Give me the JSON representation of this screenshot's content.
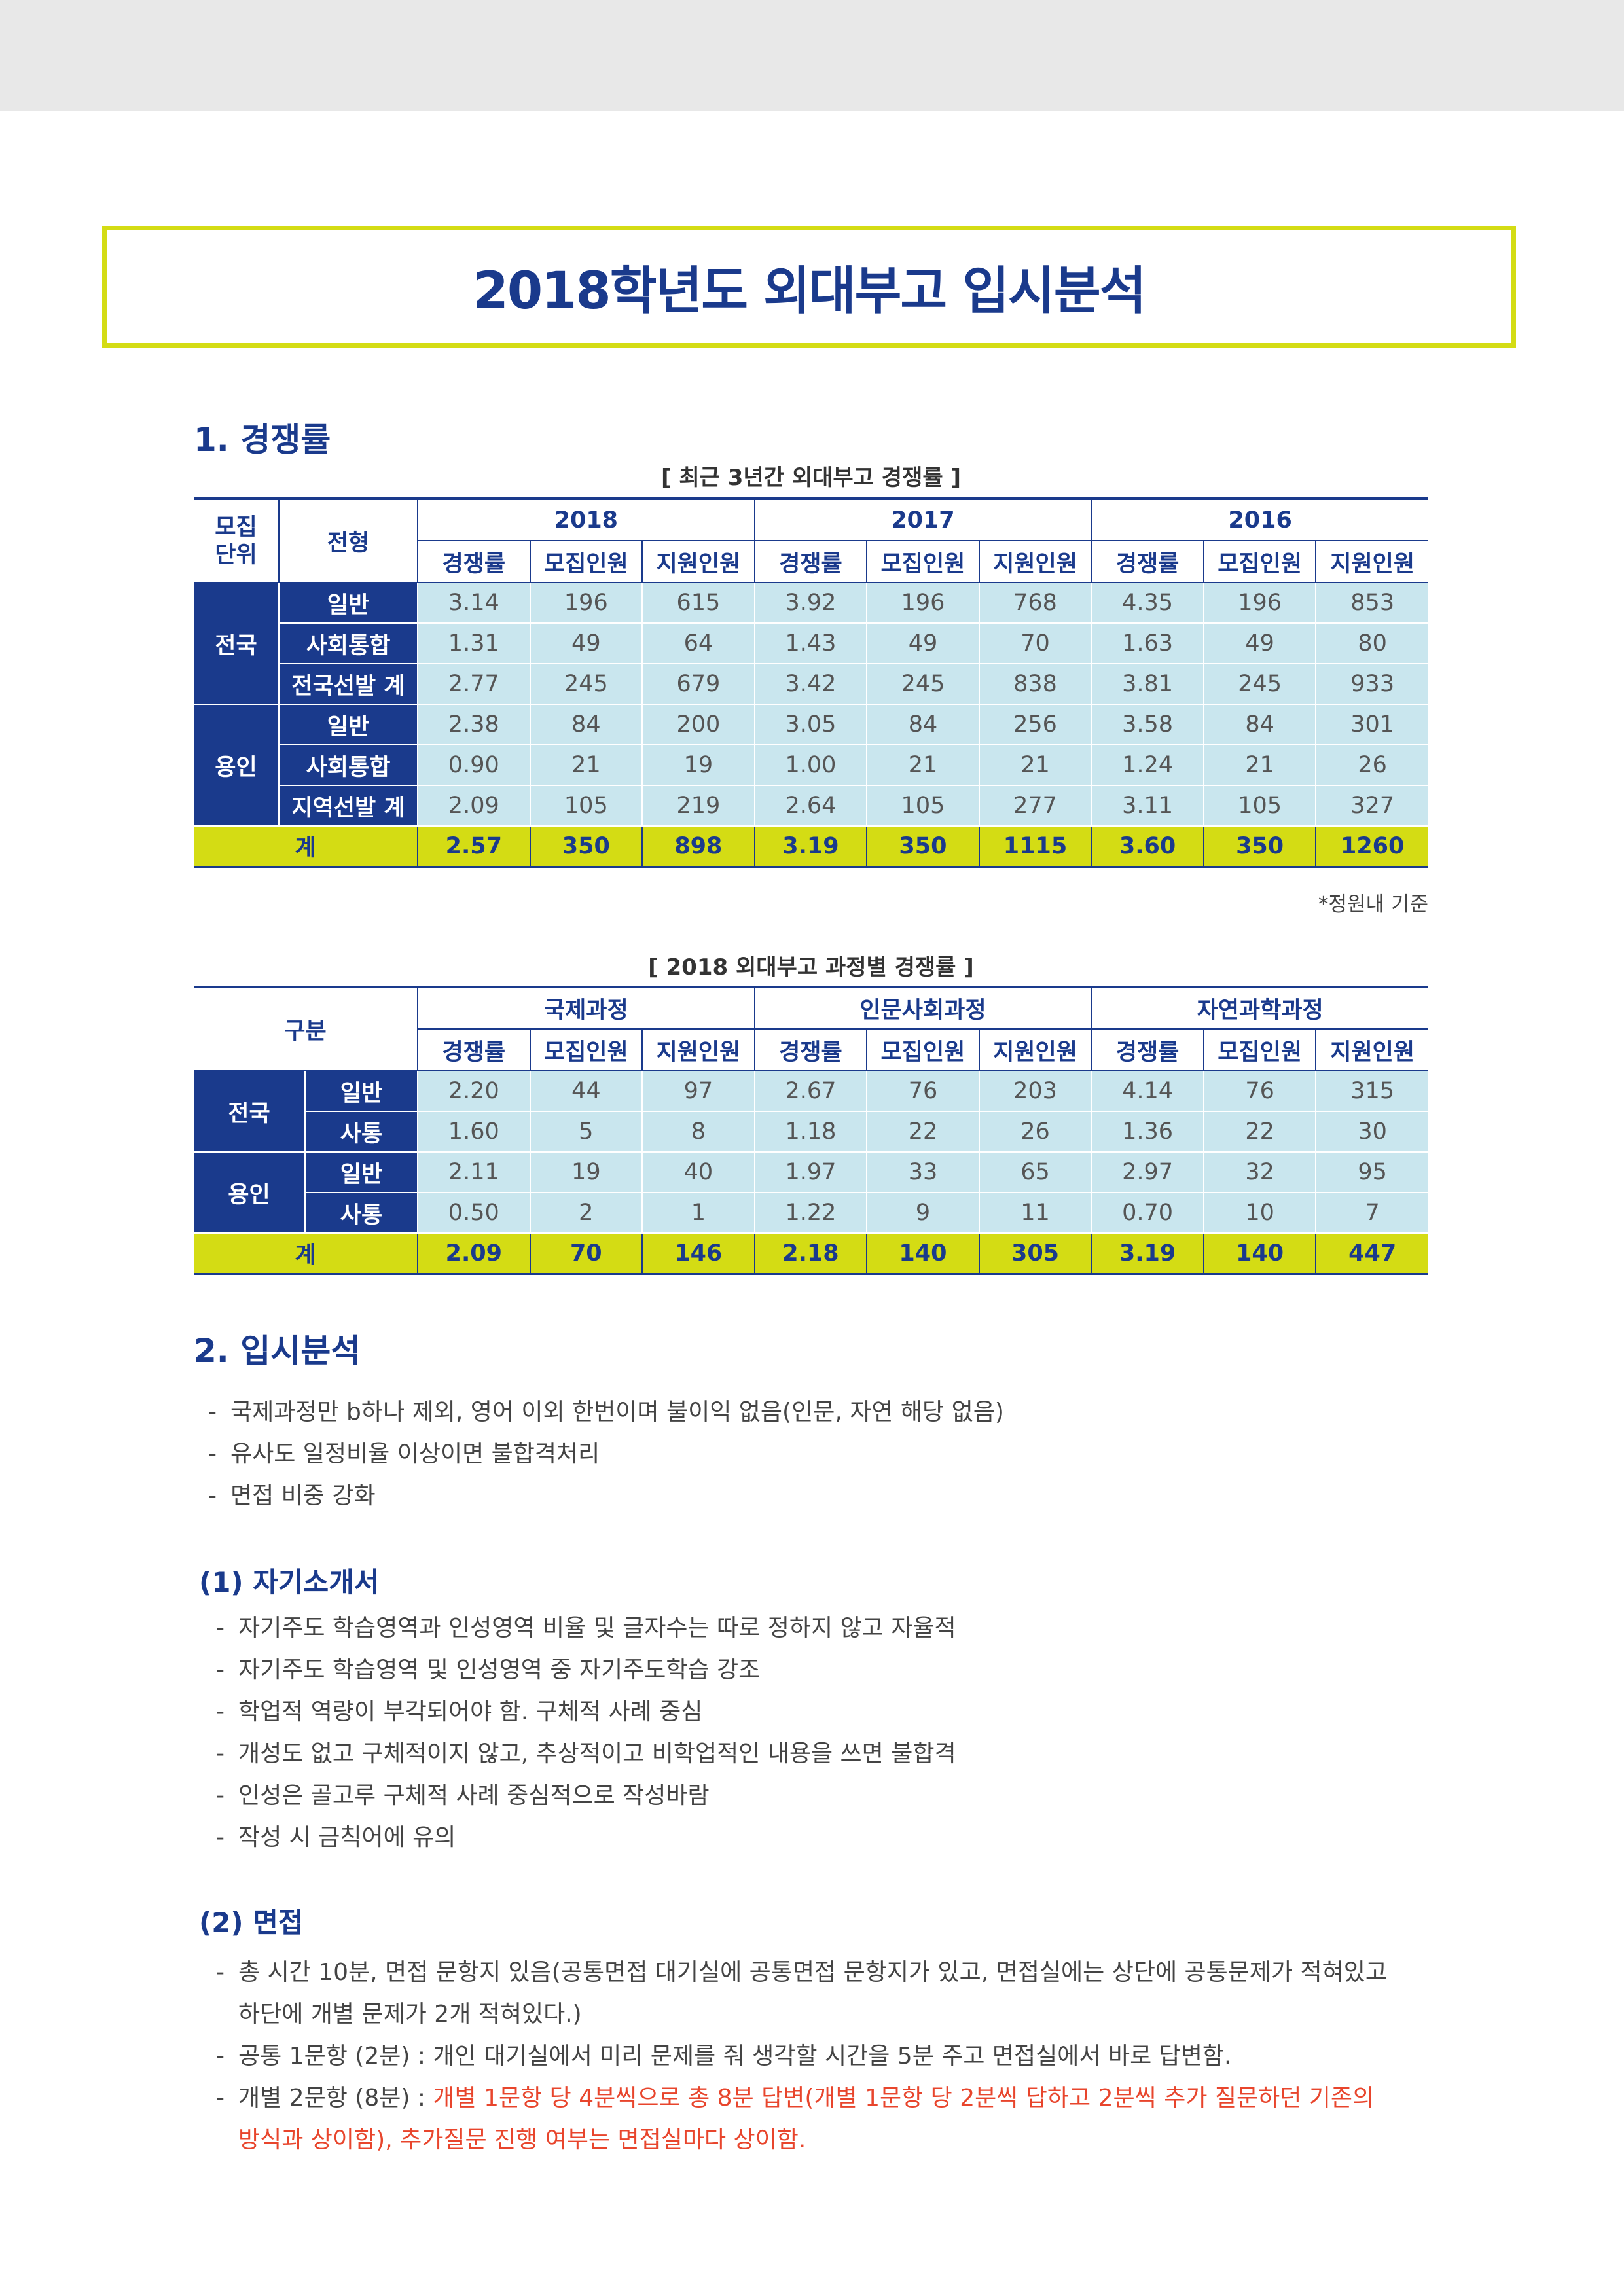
{
  "title": "2018학년도 외대부고 입시분석",
  "section1": {
    "heading": "1. 경쟁률"
  },
  "table1": {
    "caption": "[ 최근 3년간 외대부고 경쟁률 ]",
    "head_unit": "모집\n단위",
    "head_unit_line1": "모집",
    "head_unit_line2": "단위",
    "head_type": "전형",
    "years": [
      "2018",
      "2017",
      "2016"
    ],
    "cols": [
      "경쟁률",
      "모집인원",
      "지원인원"
    ],
    "groups": [
      {
        "name": "전국",
        "rows": [
          {
            "label": "일반",
            "values": [
              "3.14",
              "196",
              "615",
              "3.92",
              "196",
              "768",
              "4.35",
              "196",
              "853"
            ]
          },
          {
            "label": "사회통합",
            "values": [
              "1.31",
              "49",
              "64",
              "1.43",
              "49",
              "70",
              "1.63",
              "49",
              "80"
            ]
          },
          {
            "label": "전국선발 계",
            "values": [
              "2.77",
              "245",
              "679",
              "3.42",
              "245",
              "838",
              "3.81",
              "245",
              "933"
            ]
          }
        ]
      },
      {
        "name": "용인",
        "rows": [
          {
            "label": "일반",
            "values": [
              "2.38",
              "84",
              "200",
              "3.05",
              "84",
              "256",
              "3.58",
              "84",
              "301"
            ]
          },
          {
            "label": "사회통합",
            "values": [
              "0.90",
              "21",
              "19",
              "1.00",
              "21",
              "21",
              "1.24",
              "21",
              "26"
            ]
          },
          {
            "label": "지역선발 계",
            "values": [
              "2.09",
              "105",
              "219",
              "2.64",
              "105",
              "277",
              "3.11",
              "105",
              "327"
            ]
          }
        ]
      }
    ],
    "total": {
      "label": "계",
      "values": [
        "2.57",
        "350",
        "898",
        "3.19",
        "350",
        "1115",
        "3.60",
        "350",
        "1260"
      ]
    },
    "note": "*정원내 기준"
  },
  "table2": {
    "caption": "[ 2018 외대부고 과정별 경쟁률 ]",
    "head_group": "구분",
    "courses": [
      "국제과정",
      "인문사회과정",
      "자연과학과정"
    ],
    "cols": [
      "경쟁률",
      "모집인원",
      "지원인원"
    ],
    "groups": [
      {
        "name": "전국",
        "rows": [
          {
            "label": "일반",
            "values": [
              "2.20",
              "44",
              "97",
              "2.67",
              "76",
              "203",
              "4.14",
              "76",
              "315"
            ]
          },
          {
            "label": "사통",
            "values": [
              "1.60",
              "5",
              "8",
              "1.18",
              "22",
              "26",
              "1.36",
              "22",
              "30"
            ]
          }
        ]
      },
      {
        "name": "용인",
        "rows": [
          {
            "label": "일반",
            "values": [
              "2.11",
              "19",
              "40",
              "1.97",
              "33",
              "65",
              "2.97",
              "32",
              "95"
            ]
          },
          {
            "label": "사통",
            "values": [
              "0.50",
              "2",
              "1",
              "1.22",
              "9",
              "11",
              "0.70",
              "10",
              "7"
            ]
          }
        ]
      }
    ],
    "total": {
      "label": "계",
      "values": [
        "2.09",
        "70",
        "146",
        "2.18",
        "140",
        "305",
        "3.19",
        "140",
        "447"
      ]
    }
  },
  "section2": {
    "heading": "2. 입시분석",
    "bullets": [
      "국제과정만 b하나 제외, 영어 이외 한번이며 불이익 없음(인문, 자연 해당 없음)",
      "유사도 일정비율 이상이면 불합격처리",
      "면접 비중 강화"
    ]
  },
  "essay": {
    "heading": "(1) 자기소개서",
    "bullets": [
      "자기주도 학습영역과 인성영역 비율 및 글자수는 따로 정하지 않고 자율적",
      "자기주도 학습영역 및 인성영역 중 자기주도학습 강조",
      "학업적 역량이 부각되어야 함. 구체적 사례 중심",
      "개성도 없고 구체적이지 않고, 추상적이고 비학업적인 내용을 쓰면 불합격",
      "인성은 골고루 구체적 사례 중심적으로 작성바람",
      "작성 시 금칙어에 유의"
    ]
  },
  "interview": {
    "heading": "(2) 면접",
    "b1_line1": "총 시간 10분, 면접 문항지 있음(공통면접 대기실에 공통면접 문항지가 있고, 면접실에는 상단에 공통문제가 적혀있고",
    "b1_line2": "하단에 개별 문제가 2개 적혀있다.)",
    "b2": "공통 1문항 (2분) : 개인 대기실에서 미리 문제를 줘 생각할 시간을 5분 주고 면접실에서 바로 답변함.",
    "b3_prefix": "개별 2문항 (8분) : ",
    "b3_red_line1": "개별 1문항 당 4분씩으로 총 8분 답변(개별 1문항 당 2분씩 답하고 2분씩 추가 질문하던 기존의",
    "b3_red_line2": "방식과 상이함), 추가질문 진행 여부는 면접실마다 상이함.",
    "dash": "-"
  },
  "colors": {
    "navy": "#1a3a8c",
    "lime": "#d4dc14",
    "cell": "#c9e6ee",
    "red": "#e8452c"
  }
}
